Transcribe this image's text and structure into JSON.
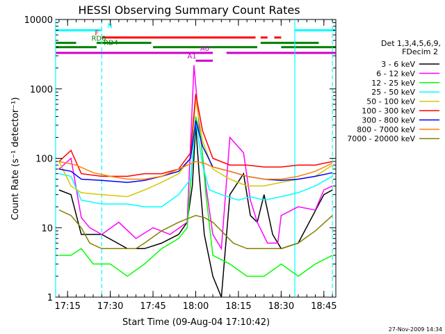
{
  "chart_data": {
    "type": "line",
    "title": "HESSI Observing Summary Count Rates",
    "xlabel": "Start Time (09-Aug-04 17:10:42)",
    "ylabel": "Count Rate (s⁻¹ detector⁻¹)",
    "y_scale": "log",
    "ylim": [
      1,
      10000
    ],
    "xlim_minutes": [
      17.18,
      18.82
    ],
    "x_ticks": [
      {
        "label": "17:15",
        "t": 17.25
      },
      {
        "label": "17:30",
        "t": 17.5
      },
      {
        "label": "17:45",
        "t": 17.75
      },
      {
        "label": "18:00",
        "t": 18.0
      },
      {
        "label": "18:15",
        "t": 18.25
      },
      {
        "label": "18:30",
        "t": 18.5
      },
      {
        "label": "18:45",
        "t": 18.75
      }
    ],
    "y_ticks": [
      {
        "label": "1",
        "v": 1
      },
      {
        "label": "10",
        "v": 10
      },
      {
        "label": "100",
        "v": 100
      },
      {
        "label": "1000",
        "v": 1000
      },
      {
        "label": "10000",
        "v": 10000
      }
    ],
    "legend": {
      "placement": "right",
      "header_lines": [
        "Det 1,3,4,5,6,9,",
        "FDecim 2"
      ]
    },
    "series": [
      {
        "name": "3 - 6 keV",
        "color": "#000000",
        "points": [
          [
            17.2,
            35
          ],
          [
            17.27,
            30
          ],
          [
            17.33,
            8
          ],
          [
            17.45,
            8
          ],
          [
            17.6,
            5
          ],
          [
            17.7,
            5
          ],
          [
            17.8,
            6
          ],
          [
            17.9,
            8
          ],
          [
            17.95,
            12
          ],
          [
            17.98,
            40
          ],
          [
            18.0,
            300
          ],
          [
            18.02,
            60
          ],
          [
            18.05,
            8
          ],
          [
            18.1,
            2
          ],
          [
            18.15,
            1
          ],
          [
            18.2,
            30
          ],
          [
            18.28,
            60
          ],
          [
            18.32,
            15
          ],
          [
            18.36,
            12
          ],
          [
            18.4,
            30
          ],
          [
            18.45,
            8
          ],
          [
            18.5,
            5
          ],
          [
            18.6,
            6
          ],
          [
            18.75,
            30
          ],
          [
            18.8,
            35
          ]
        ]
      },
      {
        "name": "6 - 12 keV",
        "color": "#ff00ff",
        "points": [
          [
            17.2,
            70
          ],
          [
            17.27,
            100
          ],
          [
            17.33,
            14
          ],
          [
            17.38,
            10
          ],
          [
            17.45,
            8
          ],
          [
            17.55,
            12
          ],
          [
            17.65,
            7
          ],
          [
            17.75,
            10
          ],
          [
            17.85,
            8
          ],
          [
            17.95,
            12
          ],
          [
            17.99,
            2200
          ],
          [
            18.02,
            300
          ],
          [
            18.06,
            40
          ],
          [
            18.1,
            8
          ],
          [
            18.15,
            5
          ],
          [
            18.2,
            200
          ],
          [
            18.28,
            120
          ],
          [
            18.32,
            25
          ],
          [
            18.36,
            12
          ],
          [
            18.42,
            6
          ],
          [
            18.48,
            6
          ],
          [
            18.5,
            15
          ],
          [
            18.6,
            20
          ],
          [
            18.7,
            18
          ],
          [
            18.75,
            35
          ],
          [
            18.8,
            40
          ]
        ]
      },
      {
        "name": "12 - 25 keV",
        "color": "#00ff00",
        "points": [
          [
            17.2,
            4
          ],
          [
            17.27,
            4
          ],
          [
            17.33,
            5
          ],
          [
            17.4,
            3
          ],
          [
            17.5,
            3
          ],
          [
            17.6,
            2
          ],
          [
            17.7,
            3
          ],
          [
            17.8,
            5
          ],
          [
            17.9,
            7
          ],
          [
            17.95,
            10
          ],
          [
            18.0,
            400
          ],
          [
            18.03,
            200
          ],
          [
            18.06,
            30
          ],
          [
            18.1,
            4
          ],
          [
            18.2,
            3
          ],
          [
            18.3,
            2
          ],
          [
            18.4,
            2
          ],
          [
            18.5,
            3
          ],
          [
            18.6,
            2
          ],
          [
            18.7,
            3
          ],
          [
            18.8,
            4
          ]
        ]
      },
      {
        "name": "25 - 50 keV",
        "color": "#00ffff",
        "points": [
          [
            17.2,
            60
          ],
          [
            17.27,
            55
          ],
          [
            17.33,
            25
          ],
          [
            17.45,
            22
          ],
          [
            17.6,
            22
          ],
          [
            17.7,
            20
          ],
          [
            17.8,
            20
          ],
          [
            17.9,
            30
          ],
          [
            17.97,
            50
          ],
          [
            18.0,
            350
          ],
          [
            18.04,
            80
          ],
          [
            18.08,
            35
          ],
          [
            18.15,
            30
          ],
          [
            18.25,
            25
          ],
          [
            18.32,
            28
          ],
          [
            18.4,
            25
          ],
          [
            18.5,
            28
          ],
          [
            18.6,
            32
          ],
          [
            18.7,
            40
          ],
          [
            18.8,
            55
          ]
        ]
      },
      {
        "name": "50 - 100 keV",
        "color": "#d4c800",
        "points": [
          [
            17.2,
            90
          ],
          [
            17.27,
            40
          ],
          [
            17.33,
            32
          ],
          [
            17.45,
            30
          ],
          [
            17.6,
            28
          ],
          [
            17.7,
            35
          ],
          [
            17.8,
            45
          ],
          [
            17.9,
            60
          ],
          [
            17.97,
            100
          ],
          [
            18.0,
            700
          ],
          [
            18.04,
            180
          ],
          [
            18.1,
            70
          ],
          [
            18.2,
            50
          ],
          [
            18.3,
            40
          ],
          [
            18.4,
            40
          ],
          [
            18.5,
            45
          ],
          [
            18.6,
            50
          ],
          [
            18.7,
            55
          ],
          [
            18.8,
            80
          ]
        ]
      },
      {
        "name": "100 - 300 keV",
        "color": "#ff0000",
        "points": [
          [
            17.2,
            90
          ],
          [
            17.27,
            130
          ],
          [
            17.33,
            60
          ],
          [
            17.45,
            55
          ],
          [
            17.6,
            55
          ],
          [
            17.7,
            60
          ],
          [
            17.8,
            60
          ],
          [
            17.9,
            70
          ],
          [
            17.97,
            120
          ],
          [
            18.0,
            850
          ],
          [
            18.04,
            250
          ],
          [
            18.1,
            100
          ],
          [
            18.2,
            80
          ],
          [
            18.3,
            80
          ],
          [
            18.4,
            75
          ],
          [
            18.5,
            75
          ],
          [
            18.6,
            80
          ],
          [
            18.7,
            80
          ],
          [
            18.8,
            90
          ]
        ]
      },
      {
        "name": "300 - 800 keV",
        "color": "#0000ff",
        "points": [
          [
            17.2,
            70
          ],
          [
            17.27,
            65
          ],
          [
            17.33,
            50
          ],
          [
            17.45,
            48
          ],
          [
            17.6,
            45
          ],
          [
            17.7,
            48
          ],
          [
            17.8,
            55
          ],
          [
            17.9,
            65
          ],
          [
            17.97,
            100
          ],
          [
            18.0,
            350
          ],
          [
            18.04,
            150
          ],
          [
            18.1,
            75
          ],
          [
            18.2,
            65
          ],
          [
            18.3,
            55
          ],
          [
            18.4,
            50
          ],
          [
            18.5,
            48
          ],
          [
            18.6,
            50
          ],
          [
            18.7,
            55
          ],
          [
            18.8,
            62
          ]
        ]
      },
      {
        "name": "800 - 7000 keV",
        "color": "#ff8000",
        "points": [
          [
            17.2,
            90
          ],
          [
            17.3,
            80
          ],
          [
            17.4,
            62
          ],
          [
            17.5,
            55
          ],
          [
            17.6,
            50
          ],
          [
            17.7,
            50
          ],
          [
            17.8,
            55
          ],
          [
            17.9,
            70
          ],
          [
            18.0,
            90
          ],
          [
            18.05,
            85
          ],
          [
            18.1,
            75
          ],
          [
            18.2,
            65
          ],
          [
            18.3,
            55
          ],
          [
            18.4,
            50
          ],
          [
            18.5,
            50
          ],
          [
            18.6,
            55
          ],
          [
            18.7,
            65
          ],
          [
            18.8,
            85
          ]
        ]
      },
      {
        "name": "7000 - 20000 keV",
        "color": "#808000",
        "points": [
          [
            17.2,
            18
          ],
          [
            17.27,
            15
          ],
          [
            17.33,
            10
          ],
          [
            17.38,
            6
          ],
          [
            17.45,
            5
          ],
          [
            17.55,
            5
          ],
          [
            17.65,
            5
          ],
          [
            17.7,
            6
          ],
          [
            17.8,
            9
          ],
          [
            17.9,
            12
          ],
          [
            18.0,
            15
          ],
          [
            18.05,
            14
          ],
          [
            18.1,
            12
          ],
          [
            18.15,
            9
          ],
          [
            18.22,
            6
          ],
          [
            18.3,
            5
          ],
          [
            18.4,
            5
          ],
          [
            18.5,
            5
          ],
          [
            18.6,
            6
          ],
          [
            18.7,
            9
          ],
          [
            18.8,
            15
          ]
        ]
      }
    ],
    "status_bars": [
      {
        "label": "N",
        "color": "#00ffff",
        "y": 7000,
        "segments": [
          [
            17.18,
            17.45
          ],
          [
            18.58,
            18.82
          ]
        ]
      },
      {
        "label": "F",
        "color": "#ff0000",
        "y": 5500,
        "segments": [
          [
            17.45,
            18.35
          ],
          [
            18.38,
            18.42
          ],
          [
            18.46,
            18.5
          ]
        ]
      },
      {
        "label": "RD0",
        "color": "#008000",
        "y": 4600,
        "segments": [
          [
            17.18,
            17.3
          ],
          [
            17.42,
            17.74
          ],
          [
            18.38,
            18.72
          ]
        ]
      },
      {
        "label": "RD4",
        "color": "#008000",
        "y": 4000,
        "segments": [
          [
            17.18,
            17.42
          ],
          [
            17.75,
            18.36
          ],
          [
            18.5,
            18.82
          ]
        ]
      },
      {
        "label": "A0",
        "color": "#cc00cc",
        "y": 3300,
        "segments": [
          [
            17.18,
            18.1
          ],
          [
            18.18,
            18.82
          ]
        ]
      },
      {
        "label": "A1",
        "color": "#cc00cc",
        "y": 2550,
        "segments": [
          [
            18.0,
            18.1
          ]
        ]
      }
    ],
    "vlines": [
      {
        "t": 17.18,
        "color": "#00ffff",
        "style": "solid"
      },
      {
        "t": 17.45,
        "color": "#00ffff",
        "style": "dashed"
      },
      {
        "t": 18.58,
        "color": "#00ffff",
        "style": "solid"
      },
      {
        "t": 18.8,
        "color": "#00ffff",
        "style": "dashed"
      }
    ],
    "grid": false
  },
  "footer": {
    "timestamp": "27-Nov-2009 14:34"
  }
}
